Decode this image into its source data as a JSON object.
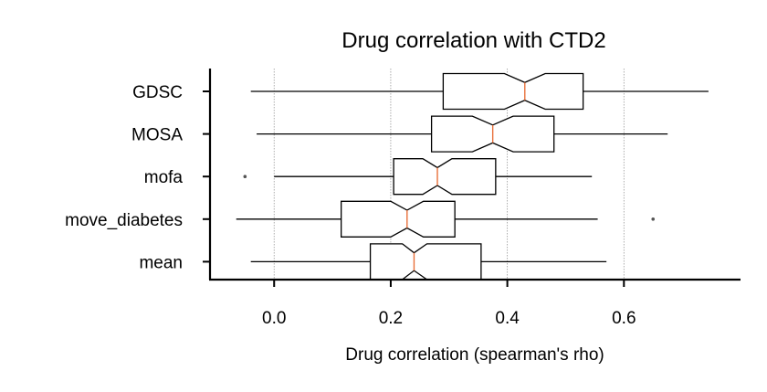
{
  "chart_data": {
    "type": "boxplot",
    "orientation": "horizontal",
    "notched": true,
    "title": "Drug correlation with CTD2",
    "xlabel": "Drug correlation (spearman's rho)",
    "ylabel": "",
    "xlim": [
      -0.11,
      0.8
    ],
    "xticks": [
      0.0,
      0.2,
      0.4,
      0.6
    ],
    "xtick_labels": [
      "0.0",
      "0.2",
      "0.4",
      "0.6"
    ],
    "grid": "x-dotted",
    "categories": [
      "GDSC",
      "MOSA",
      "mofa",
      "move_diabetes",
      "mean"
    ],
    "boxes": [
      {
        "name": "GDSC",
        "whislo": -0.04,
        "q1": 0.29,
        "notch_lo": 0.395,
        "med": 0.43,
        "notch_hi": 0.465,
        "q3": 0.53,
        "whishi": 0.745,
        "fliers": []
      },
      {
        "name": "MOSA",
        "whislo": -0.03,
        "q1": 0.27,
        "notch_lo": 0.34,
        "med": 0.375,
        "notch_hi": 0.41,
        "q3": 0.48,
        "whishi": 0.675,
        "fliers": []
      },
      {
        "name": "mofa",
        "whislo": 0.0,
        "q1": 0.205,
        "notch_lo": 0.255,
        "med": 0.28,
        "notch_hi": 0.305,
        "q3": 0.38,
        "whishi": 0.545,
        "fliers": [
          -0.05
        ]
      },
      {
        "name": "move_diabetes",
        "whislo": -0.065,
        "q1": 0.115,
        "notch_lo": 0.2,
        "med": 0.228,
        "notch_hi": 0.256,
        "q3": 0.31,
        "whishi": 0.555,
        "fliers": [
          0.65
        ]
      },
      {
        "name": "mean",
        "whislo": -0.04,
        "q1": 0.165,
        "notch_lo": 0.22,
        "med": 0.24,
        "notch_hi": 0.262,
        "q3": 0.355,
        "whishi": 0.57,
        "fliers": []
      }
    ],
    "colors": {
      "box": "#000000",
      "median": "#e8703a",
      "flier": "#555555",
      "grid": "#999999",
      "axis": "#000000"
    }
  }
}
